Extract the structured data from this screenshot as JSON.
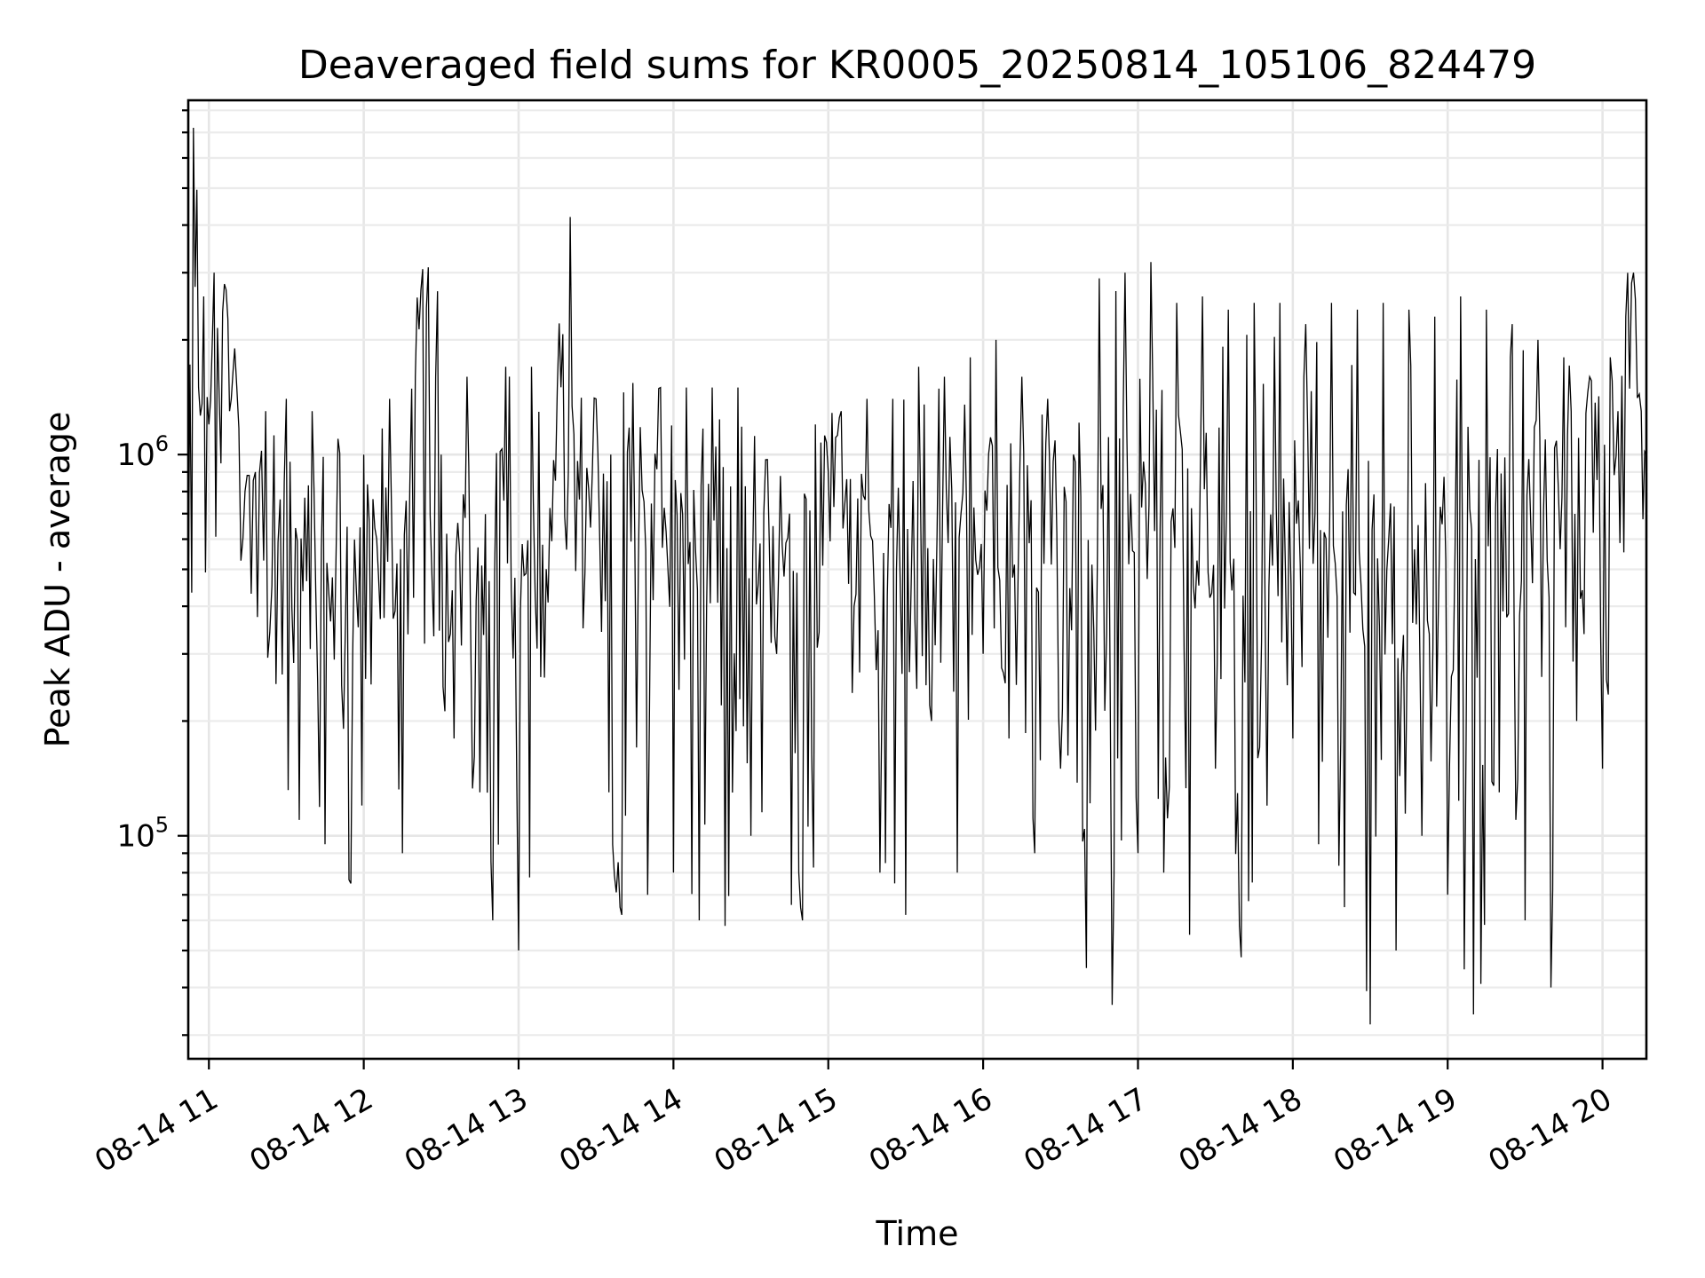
{
  "chart_data": {
    "type": "line",
    "title": "Deaveraged field sums for KR0005_20250814_105106_824479",
    "xlabel": "Time",
    "ylabel": "Peak ADU - average",
    "y_scale": "log",
    "grid": true,
    "x_range": [
      "2025-08-14 10:52",
      "2025-08-14 20:17"
    ],
    "ylim": [
      26000,
      8500000
    ],
    "x_ticks": [
      {
        "time": "2025-08-14 11:00",
        "label": "08-14 11"
      },
      {
        "time": "2025-08-14 12:00",
        "label": "08-14 12"
      },
      {
        "time": "2025-08-14 13:00",
        "label": "08-14 13"
      },
      {
        "time": "2025-08-14 14:00",
        "label": "08-14 14"
      },
      {
        "time": "2025-08-14 15:00",
        "label": "08-14 15"
      },
      {
        "time": "2025-08-14 16:00",
        "label": "08-14 16"
      },
      {
        "time": "2025-08-14 17:00",
        "label": "08-14 17"
      },
      {
        "time": "2025-08-14 18:00",
        "label": "08-14 18"
      },
      {
        "time": "2025-08-14 19:00",
        "label": "08-14 19"
      },
      {
        "time": "2025-08-14 20:00",
        "label": "08-14 20"
      }
    ],
    "y_ticks": [
      {
        "value": 100000,
        "base": "10",
        "exp": "5"
      },
      {
        "value": 1000000,
        "base": "10",
        "exp": "6"
      }
    ],
    "series": [
      {
        "color": "#000000",
        "x": [
          "2025-08-14 10:52",
          "2025-08-14 10:54",
          "2025-08-14 10:56",
          "2025-08-14 10:58",
          "2025-08-14 11:00",
          "2025-08-14 11:02",
          "2025-08-14 11:04",
          "2025-08-14 11:06",
          "2025-08-14 11:08",
          "2025-08-14 11:10",
          "2025-08-14 11:14",
          "2025-08-14 11:18",
          "2025-08-14 11:22",
          "2025-08-14 11:26",
          "2025-08-14 11:30",
          "2025-08-14 11:35",
          "2025-08-14 11:40",
          "2025-08-14 11:45",
          "2025-08-14 11:50",
          "2025-08-14 11:55",
          "2025-08-14 12:00",
          "2025-08-14 12:05",
          "2025-08-14 12:10",
          "2025-08-14 12:15",
          "2025-08-14 12:20",
          "2025-08-14 12:25",
          "2025-08-14 12:30",
          "2025-08-14 12:35",
          "2025-08-14 12:40",
          "2025-08-14 12:45",
          "2025-08-14 12:50",
          "2025-08-14 12:55",
          "2025-08-14 13:00",
          "2025-08-14 13:05",
          "2025-08-14 13:10",
          "2025-08-14 13:15",
          "2025-08-14 13:20",
          "2025-08-14 13:25",
          "2025-08-14 13:30",
          "2025-08-14 13:35",
          "2025-08-14 13:40",
          "2025-08-14 13:45",
          "2025-08-14 13:50",
          "2025-08-14 13:55",
          "2025-08-14 14:00",
          "2025-08-14 14:05",
          "2025-08-14 14:10",
          "2025-08-14 14:15",
          "2025-08-14 14:20",
          "2025-08-14 14:25",
          "2025-08-14 14:30",
          "2025-08-14 14:35",
          "2025-08-14 14:40",
          "2025-08-14 14:45",
          "2025-08-14 14:50",
          "2025-08-14 14:55",
          "2025-08-14 15:00",
          "2025-08-14 15:05",
          "2025-08-14 15:10",
          "2025-08-14 15:15",
          "2025-08-14 15:20",
          "2025-08-14 15:25",
          "2025-08-14 15:30",
          "2025-08-14 15:35",
          "2025-08-14 15:40",
          "2025-08-14 15:45",
          "2025-08-14 15:50",
          "2025-08-14 15:55",
          "2025-08-14 16:00",
          "2025-08-14 16:05",
          "2025-08-14 16:10",
          "2025-08-14 16:15",
          "2025-08-14 16:20",
          "2025-08-14 16:25",
          "2025-08-14 16:30",
          "2025-08-14 16:35",
          "2025-08-14 16:40",
          "2025-08-14 16:45",
          "2025-08-14 16:50",
          "2025-08-14 16:55",
          "2025-08-14 17:00",
          "2025-08-14 17:05",
          "2025-08-14 17:10",
          "2025-08-14 17:15",
          "2025-08-14 17:20",
          "2025-08-14 17:25",
          "2025-08-14 17:30",
          "2025-08-14 17:35",
          "2025-08-14 17:40",
          "2025-08-14 17:45",
          "2025-08-14 17:50",
          "2025-08-14 17:55",
          "2025-08-14 18:00",
          "2025-08-14 18:05",
          "2025-08-14 18:10",
          "2025-08-14 18:15",
          "2025-08-14 18:20",
          "2025-08-14 18:25",
          "2025-08-14 18:30",
          "2025-08-14 18:35",
          "2025-08-14 18:40",
          "2025-08-14 18:45",
          "2025-08-14 18:50",
          "2025-08-14 18:55",
          "2025-08-14 19:00",
          "2025-08-14 19:05",
          "2025-08-14 19:10",
          "2025-08-14 19:15",
          "2025-08-14 19:20",
          "2025-08-14 19:25",
          "2025-08-14 19:30",
          "2025-08-14 19:35",
          "2025-08-14 19:40",
          "2025-08-14 19:45",
          "2025-08-14 19:50",
          "2025-08-14 19:55",
          "2025-08-14 20:00",
          "2025-08-14 20:03",
          "2025-08-14 20:06",
          "2025-08-14 20:09",
          "2025-08-14 20:12",
          "2025-08-14 20:15",
          "2025-08-14 20:17"
        ],
        "y": [
          400000,
          7200000,
          1500000,
          2600000,
          1200000,
          3000000,
          1400000,
          2800000,
          1300000,
          1900000,
          800000,
          900000,
          1300000,
          250000,
          1400000,
          110000,
          1300000,
          95000,
          1100000,
          75000,
          1000000,
          600000,
          1400000,
          90000,
          1600000,
          3100000,
          1000000,
          180000,
          1600000,
          130000,
          60000,
          1700000,
          50000,
          1700000,
          260000,
          1500000,
          4200000,
          350000,
          1400000,
          130000,
          62000,
          620000,
          70000,
          1500000,
          80000,
          1500000,
          60000,
          1500000,
          58000,
          1500000,
          100000,
          700000,
          300000,
          700000,
          60000,
          1200000,
          900000,
          1300000,
          400000,
          1400000,
          80000,
          1400000,
          62000,
          1700000,
          200000,
          1600000,
          80000,
          1800000,
          300000,
          2000000,
          180000,
          1600000,
          90000,
          1400000,
          150000,
          1000000,
          45000,
          2900000,
          36000,
          3000000,
          90000,
          3200000,
          80000,
          2500000,
          55000,
          2600000,
          150000,
          2400000,
          48000,
          2500000,
          120000,
          2500000,
          180000,
          2200000,
          95000,
          2500000,
          65000,
          2400000,
          32000,
          2500000,
          50000,
          2400000,
          100000,
          2300000,
          70000,
          2600000,
          34000,
          2400000,
          130000,
          2200000,
          60000,
          2000000,
          40000,
          1800000,
          200000,
          1600000,
          150000,
          1800000,
          1300000,
          2300000,
          3000000,
          1300000,
          1000000
        ]
      }
    ]
  }
}
